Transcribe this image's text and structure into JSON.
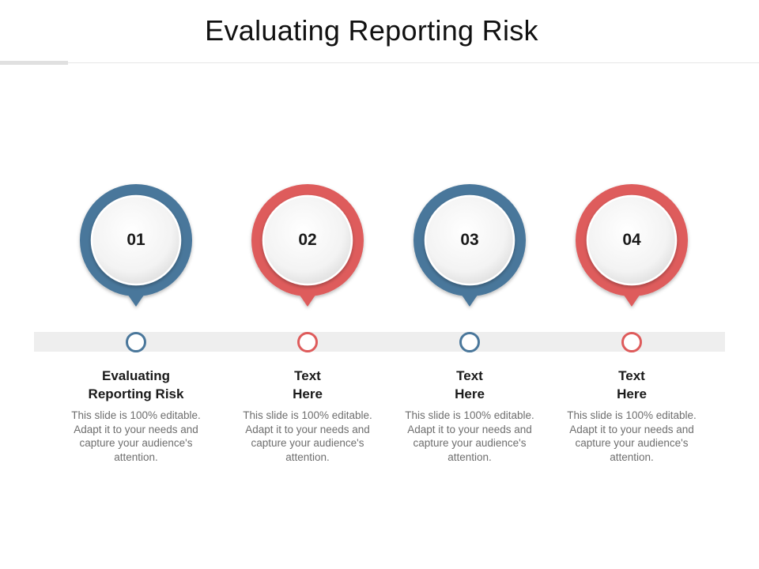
{
  "title": "Evaluating Reporting Risk",
  "colors": {
    "blue": "#4a779b",
    "red": "#de5b5b",
    "band": "#eeeeee"
  },
  "steps": [
    {
      "number": "01",
      "heading": "Evaluating\nReporting Risk",
      "description": "This slide is 100% editable. Adapt it to your needs and capture your audience's attention.",
      "color": "#4a779b"
    },
    {
      "number": "02",
      "heading": "Text\nHere",
      "description": "This slide is 100% editable. Adapt it to your needs and capture your audience's attention.",
      "color": "#de5b5b"
    },
    {
      "number": "03",
      "heading": "Text\nHere",
      "description": "This slide is 100% editable. Adapt it to your needs and capture your audience's attention.",
      "color": "#4a779b"
    },
    {
      "number": "04",
      "heading": "Text\nHere",
      "description": "This slide is 100% editable. Adapt it to your needs and capture your audience's attention.",
      "color": "#de5b5b"
    }
  ]
}
